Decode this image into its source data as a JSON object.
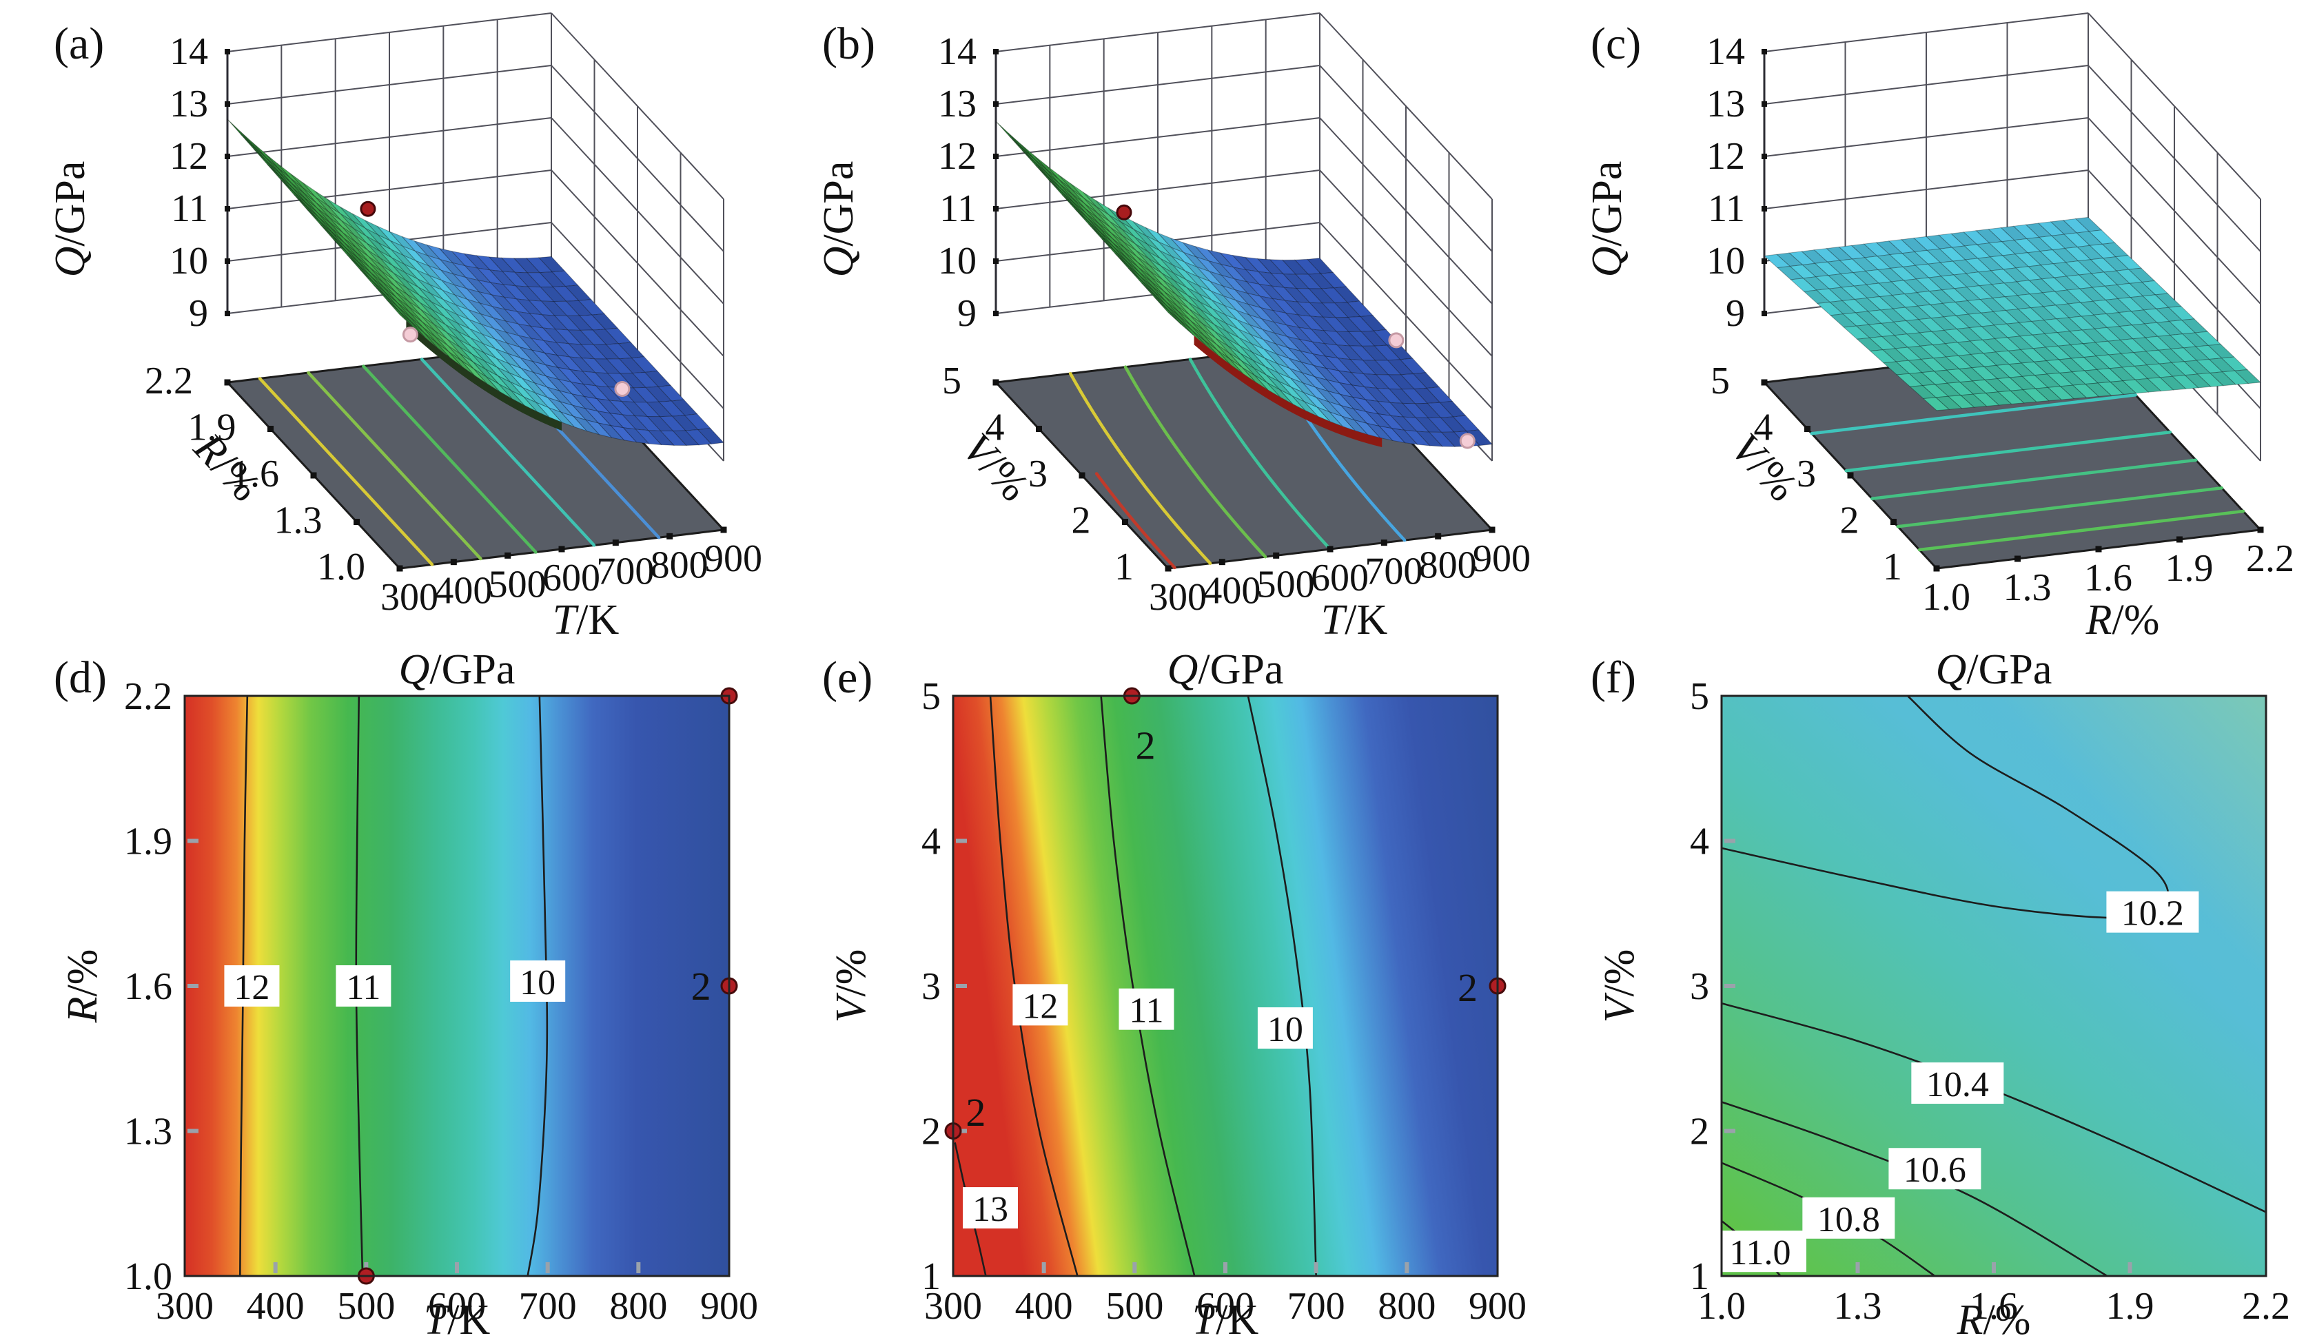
{
  "background": "#ffffff",
  "panels": {
    "a": {
      "letter": "(a)",
      "zlabel_it": "Q",
      "zlabel_rest": "/GPa",
      "xlabel_it": "T",
      "xlabel_rest": "/K",
      "ylabel_it": "R",
      "ylabel_rest": "/%",
      "z_ticks": [
        "14",
        "13",
        "12",
        "11",
        "10",
        "9"
      ],
      "x_ticks": [
        "300",
        "400",
        "500",
        "600",
        "700",
        "800",
        "900"
      ],
      "y_ticks": [
        "2.2",
        "1.9",
        "1.6",
        "1.3",
        "1.0"
      ]
    },
    "b": {
      "letter": "(b)",
      "zlabel_it": "Q",
      "zlabel_rest": "/GPa",
      "xlabel_it": "T",
      "xlabel_rest": "/K",
      "ylabel_it": "V",
      "ylabel_rest": "/%",
      "z_ticks": [
        "14",
        "13",
        "12",
        "11",
        "10",
        "9"
      ],
      "x_ticks": [
        "300",
        "400",
        "500",
        "600",
        "700",
        "800",
        "900"
      ],
      "y_ticks": [
        "5",
        "4",
        "3",
        "2",
        "1"
      ]
    },
    "c": {
      "letter": "(c)",
      "zlabel_it": "Q",
      "zlabel_rest": "/GPa",
      "xlabel_it": "R",
      "xlabel_rest": "/%",
      "ylabel_it": "V",
      "ylabel_rest": "/%",
      "z_ticks": [
        "14",
        "13",
        "12",
        "11",
        "10",
        "9"
      ],
      "x_ticks": [
        "1.0",
        "1.3",
        "1.6",
        "1.9",
        "2.2"
      ],
      "y_ticks": [
        "5",
        "4",
        "3",
        "2",
        "1"
      ]
    },
    "d": {
      "letter": "(d)",
      "title_it": "Q",
      "title_rest": "/GPa",
      "xlabel_it": "T",
      "xlabel_rest": "/K",
      "ylabel_it": "R",
      "ylabel_rest": "/%",
      "x_ticks": [
        "300",
        "400",
        "500",
        "600",
        "700",
        "800",
        "900"
      ],
      "y_ticks": [
        "2.2",
        "1.9",
        "1.6",
        "1.3",
        "1.0"
      ],
      "contours": [
        {
          "label": "12"
        },
        {
          "label": "11"
        },
        {
          "label": "10"
        }
      ],
      "markers": [
        {
          "label": "2"
        }
      ]
    },
    "e": {
      "letter": "(e)",
      "title_it": "Q",
      "title_rest": "/GPa",
      "xlabel_it": "T",
      "xlabel_rest": "/K",
      "ylabel_it": "V",
      "ylabel_rest": "/%",
      "x_ticks": [
        "300",
        "400",
        "500",
        "600",
        "700",
        "800",
        "900"
      ],
      "y_ticks": [
        "5",
        "4",
        "3",
        "2",
        "1"
      ],
      "contours": [
        {
          "label": "12"
        },
        {
          "label": "11"
        },
        {
          "label": "10"
        },
        {
          "label": "13"
        }
      ],
      "markers": [
        {
          "label": "2"
        },
        {
          "label": "2"
        },
        {
          "label": "2"
        }
      ]
    },
    "f": {
      "letter": "(f)",
      "title_it": "Q",
      "title_rest": "/GPa",
      "xlabel_it": "R",
      "xlabel_rest": "/%",
      "ylabel_it": "V",
      "ylabel_rest": "/%",
      "x_ticks": [
        "1.0",
        "1.3",
        "1.6",
        "1.9",
        "2.2"
      ],
      "y_ticks": [
        "5",
        "4",
        "3",
        "2",
        "1"
      ],
      "contours": [
        {
          "label": "10.2"
        },
        {
          "label": "10.4"
        },
        {
          "label": "10.6"
        },
        {
          "label": "10.8"
        },
        {
          "label": "11.0"
        }
      ],
      "markers": []
    }
  },
  "chart_data": [
    {
      "id": "(a)",
      "type": "surface",
      "xlabel": "T/K",
      "ylabel": "R/%",
      "zlabel": "Q/GPa",
      "x_range": [
        300,
        900
      ],
      "y_range": [
        1.0,
        2.2
      ],
      "z_range": [
        9,
        14
      ],
      "x_ticks": [
        300,
        400,
        500,
        600,
        700,
        800,
        900
      ],
      "y_ticks": [
        1.0,
        1.3,
        1.6,
        1.9,
        2.2
      ],
      "z_ticks": [
        9,
        10,
        11,
        12,
        13,
        14
      ],
      "surface_trend": "Q falls from about 12.6 GPa at T=300 K to about 9.3 GPa near T=900 K, almost independent of R",
      "floor_contour_colors": [
        "#d8ca36",
        "#86c14a",
        "#52b95c",
        "#3fc2b2",
        "#4b8fd6"
      ],
      "points": [
        {
          "T": 520,
          "R": 2.1,
          "Q": 11.1,
          "color": "red"
        },
        {
          "T": 340,
          "R": 1.05,
          "Q": 11.9,
          "color": "pink"
        },
        {
          "T": 790,
          "R": 1.25,
          "Q": 9.6,
          "color": "pink"
        }
      ]
    },
    {
      "id": "(b)",
      "type": "surface",
      "xlabel": "T/K",
      "ylabel": "V/%",
      "zlabel": "Q/GPa",
      "x_range": [
        300,
        900
      ],
      "y_range": [
        1,
        5
      ],
      "z_range": [
        9,
        14
      ],
      "x_ticks": [
        300,
        400,
        500,
        600,
        700,
        800,
        900
      ],
      "y_ticks": [
        1,
        2,
        3,
        4,
        5
      ],
      "z_ticks": [
        9,
        10,
        11,
        12,
        13,
        14
      ],
      "surface_trend": "Q falls from about 12.6 GPa at T=300 K to about 9.3 GPa at T=900 K with a shallow bowl versus V; red underside visible along the front edge",
      "floor_contour_colors": [
        "#c23a2a",
        "#d8ca36",
        "#6cbe4d",
        "#3ec29a",
        "#47a5e0"
      ],
      "points": [
        {
          "T": 480,
          "V": 4.3,
          "Q": 11.3,
          "color": "red"
        },
        {
          "T": 880,
          "V": 3,
          "Q": 9.6,
          "color": "pink"
        },
        {
          "T": 870,
          "V": 1.1,
          "Q": 9.3,
          "color": "pink"
        }
      ]
    },
    {
      "id": "(c)",
      "type": "surface",
      "xlabel": "R/%",
      "ylabel": "V/%",
      "zlabel": "Q/GPa",
      "x_range": [
        1.0,
        2.2
      ],
      "y_range": [
        1,
        5
      ],
      "z_range": [
        9,
        14
      ],
      "x_ticks": [
        1.0,
        1.3,
        1.6,
        1.9,
        2.2
      ],
      "y_ticks": [
        1,
        2,
        3,
        4,
        5
      ],
      "z_ticks": [
        9,
        10,
        11,
        12,
        13,
        14
      ],
      "surface_trend": "Nearly flat plane: Q about 10.1 GPa at V=5 rising to about 10.7 GPa at V=1, weak R dependence",
      "floor_contour_colors": [
        "#3fc4bc",
        "#3dc4a4",
        "#44c184",
        "#4fc06a",
        "#59c158"
      ],
      "points": []
    },
    {
      "id": "(d)",
      "type": "contour",
      "title": "Q/GPa",
      "xlabel": "T/K",
      "ylabel": "R/%",
      "x_range": [
        300,
        900
      ],
      "y_range": [
        1.0,
        2.2
      ],
      "levels": [
        12,
        11,
        10
      ],
      "level_T_positions": [
        366,
        491,
        690
      ],
      "colormap": "red(300K) -> yellow(390K) -> green(500K) -> teal(600K) -> cyan(650K) -> blue(750-900K)",
      "design_points": [
        [
          900,
          2.2
        ],
        [
          900,
          1.6
        ],
        [
          500,
          1.0
        ]
      ],
      "design_point_count_label": "2"
    },
    {
      "id": "(e)",
      "type": "contour",
      "title": "Q/GPa",
      "xlabel": "T/K",
      "ylabel": "V/%",
      "x_range": [
        300,
        900
      ],
      "y_range": [
        1,
        5
      ],
      "levels": [
        13,
        12,
        11,
        10
      ],
      "level_T_positions_at_V3": [
        345,
        390,
        510,
        680
      ],
      "colormap": "red(300K) -> yellow(400K) -> green(500K) -> teal(620K) -> blue(720-900K), bands bend toward higher T at low V",
      "design_points": [
        [
          500,
          5
        ],
        [
          900,
          3
        ],
        [
          300,
          2
        ]
      ],
      "design_point_count_label": "2"
    },
    {
      "id": "(f)",
      "type": "contour",
      "title": "Q/GPa",
      "xlabel": "R/%",
      "ylabel": "V/%",
      "x_range": [
        1.0,
        2.2
      ],
      "y_range": [
        1,
        5
      ],
      "levels": [
        11.0,
        10.8,
        10.6,
        10.4,
        10.2
      ],
      "colormap": "green at low R / low V rising diagonally to cyan-blue at high V",
      "design_points": []
    }
  ]
}
